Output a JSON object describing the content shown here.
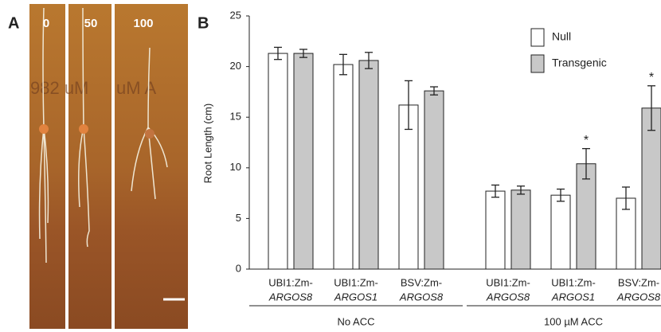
{
  "panel_a": {
    "letter": "A",
    "labels": [
      "0",
      "50",
      "100"
    ],
    "background_text": [
      "982 uM",
      "uM A"
    ]
  },
  "chart_data": {
    "type": "bar",
    "panel_letter": "B",
    "y_label": "Root Length (cm)",
    "categories": [
      [
        "UBI1:Zm-",
        "ARGOS8"
      ],
      [
        "UBI1:Zm-",
        "ARGOS1"
      ],
      [
        "BSV:Zm-",
        "ARGOS8"
      ],
      [
        "UBI1:Zm-",
        "ARGOS8"
      ],
      [
        "UBI1:Zm-",
        "ARGOS1"
      ],
      [
        "BSV:Zm-",
        "ARGOS8"
      ]
    ],
    "groups": [
      {
        "name": "No ACC",
        "count": 3
      },
      {
        "name": "100 µM ACC",
        "count": 3
      }
    ],
    "series": [
      {
        "name": "Null",
        "color": "#ffffff",
        "values": [
          21.3,
          20.2,
          16.2,
          7.7,
          7.3,
          7.0
        ],
        "errors": [
          0.6,
          1.0,
          2.4,
          0.6,
          0.6,
          1.1
        ]
      },
      {
        "name": "Transgenic",
        "color": "#c8c8c8",
        "values": [
          21.3,
          20.6,
          17.6,
          7.8,
          10.4,
          15.9
        ],
        "errors": [
          0.4,
          0.8,
          0.4,
          0.4,
          1.5,
          2.2
        ]
      }
    ],
    "annotations": [
      {
        "text": "*",
        "series": 1,
        "category": 4
      },
      {
        "text": "*",
        "series": 1,
        "category": 5
      }
    ],
    "ylim": [
      0,
      25
    ],
    "yticks": [
      0,
      5,
      10,
      15,
      20,
      25
    ],
    "grid": false,
    "legend": "upper right"
  }
}
